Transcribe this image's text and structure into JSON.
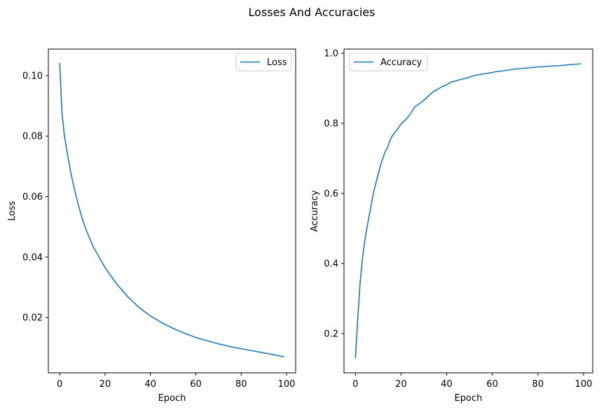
{
  "figure": {
    "suptitle": "Losses And Accuracies"
  },
  "chart_data": [
    {
      "type": "line",
      "xlabel": "Epoch",
      "ylabel": "Loss",
      "xlim": [
        -5,
        104
      ],
      "ylim": [
        0.0017,
        0.1088
      ],
      "xticks": [
        0,
        20,
        40,
        60,
        80,
        100
      ],
      "yticks": [
        0.02,
        0.04,
        0.06,
        0.08,
        0.1
      ],
      "ytick_labels": [
        "0.02",
        "0.04",
        "0.06",
        "0.08",
        "0.10"
      ],
      "legend_position": "upper right",
      "grid": false,
      "series": [
        {
          "name": "Loss",
          "color": "#1f77b4",
          "x": [
            0,
            1,
            2,
            3,
            4,
            5,
            6,
            8,
            10,
            12,
            15,
            20,
            25,
            30,
            35,
            40,
            45,
            50,
            55,
            60,
            65,
            70,
            75,
            80,
            85,
            90,
            95,
            99
          ],
          "y": [
            0.1042,
            0.0876,
            0.0806,
            0.0758,
            0.0716,
            0.0676,
            0.0641,
            0.0578,
            0.0525,
            0.0483,
            0.0431,
            0.0365,
            0.0312,
            0.0269,
            0.0233,
            0.0205,
            0.0183,
            0.0164,
            0.0148,
            0.0134,
            0.0123,
            0.0113,
            0.0104,
            0.0097,
            0.009,
            0.0083,
            0.0076,
            0.007
          ]
        }
      ]
    },
    {
      "type": "line",
      "xlabel": "Epoch",
      "ylabel": "Accuracy",
      "xlim": [
        -5,
        104
      ],
      "ylim": [
        0.088,
        1.012
      ],
      "xticks": [
        0,
        20,
        40,
        60,
        80,
        100
      ],
      "yticks": [
        0.2,
        0.4,
        0.6,
        0.8,
        1.0
      ],
      "ytick_labels": [
        "0.2",
        "0.4",
        "0.6",
        "0.8",
        "1.0"
      ],
      "legend_position": "upper left",
      "grid": false,
      "series": [
        {
          "name": "Accuracy",
          "color": "#1f77b4",
          "x": [
            0,
            1,
            2,
            3,
            4,
            5,
            6,
            7,
            8,
            9,
            10,
            11,
            12,
            13,
            14,
            15,
            16,
            18,
            20,
            22,
            24,
            26,
            28,
            30,
            32,
            34,
            36,
            38,
            40,
            42,
            44,
            46,
            48,
            50,
            52,
            55,
            58,
            60,
            62,
            65,
            68,
            70,
            75,
            80,
            85,
            90,
            95,
            99
          ],
          "y": [
            0.13,
            0.24,
            0.34,
            0.41,
            0.46,
            0.5,
            0.535,
            0.57,
            0.605,
            0.63,
            0.655,
            0.68,
            0.7,
            0.718,
            0.73,
            0.748,
            0.763,
            0.78,
            0.798,
            0.81,
            0.826,
            0.847,
            0.856,
            0.866,
            0.878,
            0.89,
            0.897,
            0.905,
            0.91,
            0.918,
            0.921,
            0.925,
            0.928,
            0.932,
            0.936,
            0.94,
            0.943,
            0.945,
            0.948,
            0.95,
            0.953,
            0.955,
            0.958,
            0.961,
            0.963,
            0.965,
            0.968,
            0.97
          ]
        }
      ]
    }
  ]
}
